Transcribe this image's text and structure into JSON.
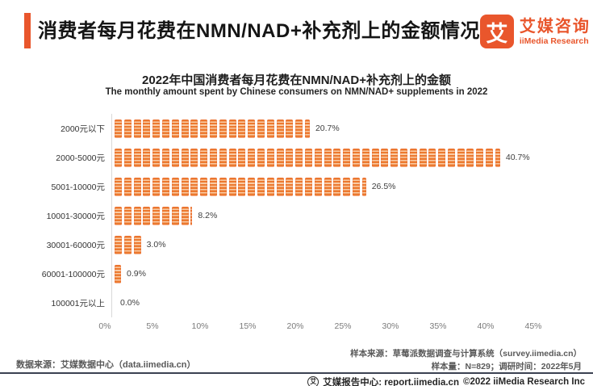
{
  "header": {
    "title": "消费者每月花费在NMN/NAD+补充剂上的金额情况",
    "logo_mark": "艾",
    "logo_cn": "艾媒咨询",
    "logo_en": "iiMedia Research"
  },
  "chart": {
    "title": "2022年中国消费者每月花费在NMN/NAD+补充剂上的金额",
    "subtitle": "The monthly amount spent by Chinese consumers on NMN/NAD+ supplements in 2022"
  },
  "chart_data": {
    "type": "bar",
    "orientation": "horizontal",
    "pictogram": "coin-stack-icon",
    "title": "2022年中国消费者每月花费在NMN/NAD+补充剂上的金额",
    "subtitle": "The monthly amount spent by Chinese consumers on NMN/NAD+ supplements in 2022",
    "categories": [
      "2000元以下",
      "2000-5000元",
      "5001-10000元",
      "10001-30000元",
      "30001-60000元",
      "60001-100000元",
      "100001元以上"
    ],
    "values": [
      20.7,
      40.7,
      26.5,
      8.2,
      3.0,
      0.9,
      0.0
    ],
    "value_labels": [
      "20.7%",
      "40.7%",
      "26.5%",
      "8.2%",
      "3.0%",
      "0.9%",
      "0.0%"
    ],
    "xlabel": "",
    "ylabel": "",
    "xlim": [
      0,
      45
    ],
    "x_ticks": [
      "0%",
      "5%",
      "10%",
      "15%",
      "20%",
      "25%",
      "30%",
      "35%",
      "40%",
      "45%"
    ],
    "grid": false,
    "legend": "none",
    "bar_color": "#EC7A30"
  },
  "footer": {
    "data_source": "数据来源：艾媒数据中心（data.iimedia.cn）",
    "sample_source": "样本来源：草莓派数据调查与计算系统（survey.iimedia.cn）",
    "sample_info": "样本量：N=829；调研时间：2022年5月",
    "report_center": "艾媒报告中心: report.iimedia.cn",
    "copyright": "©2022  iiMedia Research Inc"
  },
  "colors": {
    "accent": "#E9562C",
    "bar": "#EC7A30",
    "bar_stripe": "#F9CBA4",
    "divider": "#3B4252"
  }
}
